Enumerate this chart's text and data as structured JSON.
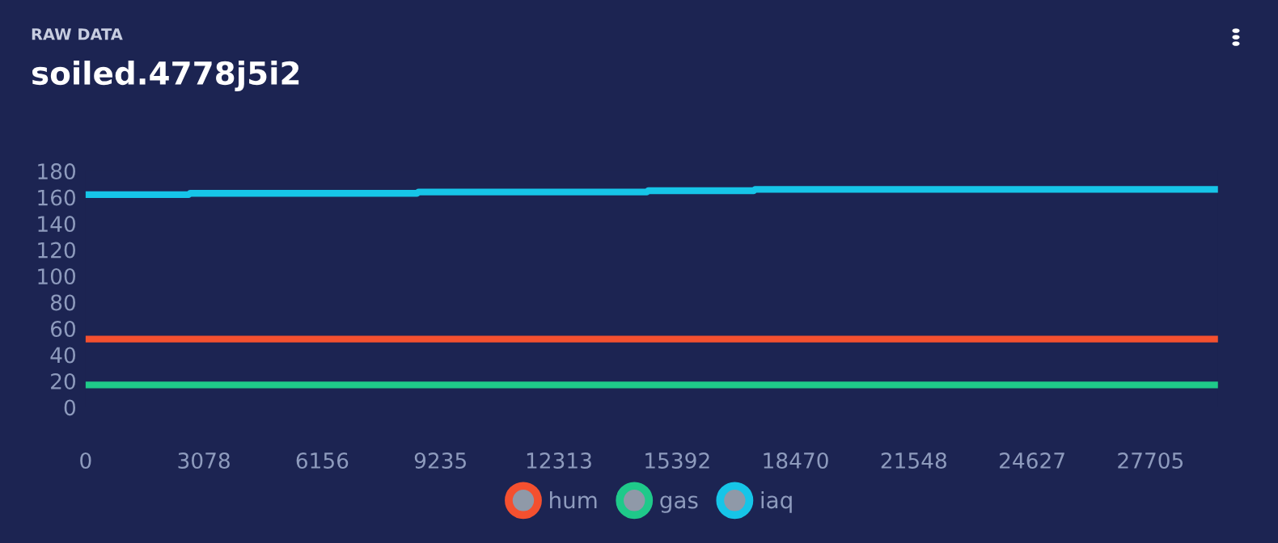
{
  "chart_data": {
    "type": "line",
    "subtitle": "RAW DATA",
    "title": "soiled.4778j5i2",
    "xlim": [
      0,
      29460
    ],
    "xticks": [
      0,
      3078,
      6156,
      9235,
      12313,
      15392,
      18470,
      21548,
      24627,
      27705
    ],
    "ylim": [
      0,
      180
    ],
    "yticks": [
      0,
      20,
      40,
      60,
      80,
      100,
      120,
      140,
      160,
      180
    ],
    "grid": false,
    "legend": "bottom",
    "line_style": "solid",
    "marker": "none",
    "series": [
      {
        "name": "hum",
        "color": "#f4502f",
        "x": [
          0,
          29460
        ],
        "values": [
          52,
          52
        ]
      },
      {
        "name": "gas",
        "color": "#1fc98a",
        "x": [
          0,
          29460
        ],
        "values": [
          17,
          17
        ]
      },
      {
        "name": "iaq",
        "color": "#16c5e8",
        "x": [
          0,
          2680,
          2720,
          8620,
          8660,
          14600,
          14640,
          17380,
          17420,
          29460
        ],
        "values": [
          162,
          162,
          163,
          163,
          164,
          164,
          165,
          165,
          166,
          166
        ]
      }
    ]
  }
}
